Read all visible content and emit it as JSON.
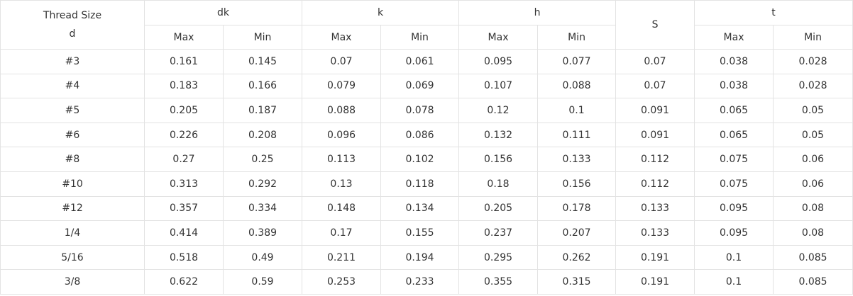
{
  "header": {
    "first": [
      "Thread Size",
      "d"
    ],
    "groups": [
      {
        "label": "dk",
        "sub": [
          "Max",
          "Min"
        ]
      },
      {
        "label": "k",
        "sub": [
          "Max",
          "Min"
        ]
      },
      {
        "label": "h",
        "sub": [
          "Max",
          "Min"
        ]
      },
      {
        "label": "S"
      },
      {
        "label": "t",
        "sub": [
          "Max",
          "Min"
        ]
      }
    ]
  },
  "table": {
    "rows": [
      [
        "#3",
        "0.161",
        "0.145",
        "0.07",
        "0.061",
        "0.095",
        "0.077",
        "0.07",
        "0.038",
        "0.028"
      ],
      [
        "#4",
        "0.183",
        "0.166",
        "0.079",
        "0.069",
        "0.107",
        "0.088",
        "0.07",
        "0.038",
        "0.028"
      ],
      [
        "#5",
        "0.205",
        "0.187",
        "0.088",
        "0.078",
        "0.12",
        "0.1",
        "0.091",
        "0.065",
        "0.05"
      ],
      [
        "#6",
        "0.226",
        "0.208",
        "0.096",
        "0.086",
        "0.132",
        "0.111",
        "0.091",
        "0.065",
        "0.05"
      ],
      [
        "#8",
        "0.27",
        "0.25",
        "0.113",
        "0.102",
        "0.156",
        "0.133",
        "0.112",
        "0.075",
        "0.06"
      ],
      [
        "#10",
        "0.313",
        "0.292",
        "0.13",
        "0.118",
        "0.18",
        "0.156",
        "0.112",
        "0.075",
        "0.06"
      ],
      [
        "#12",
        "0.357",
        "0.334",
        "0.148",
        "0.134",
        "0.205",
        "0.178",
        "0.133",
        "0.095",
        "0.08"
      ],
      [
        "1/4",
        "0.414",
        "0.389",
        "0.17",
        "0.155",
        "0.237",
        "0.207",
        "0.133",
        "0.095",
        "0.08"
      ],
      [
        "5/16",
        "0.518",
        "0.49",
        "0.211",
        "0.194",
        "0.295",
        "0.262",
        "0.191",
        "0.1",
        "0.085"
      ],
      [
        "3/8",
        "0.622",
        "0.59",
        "0.253",
        "0.233",
        "0.355",
        "0.315",
        "0.191",
        "0.1",
        "0.085"
      ]
    ]
  }
}
